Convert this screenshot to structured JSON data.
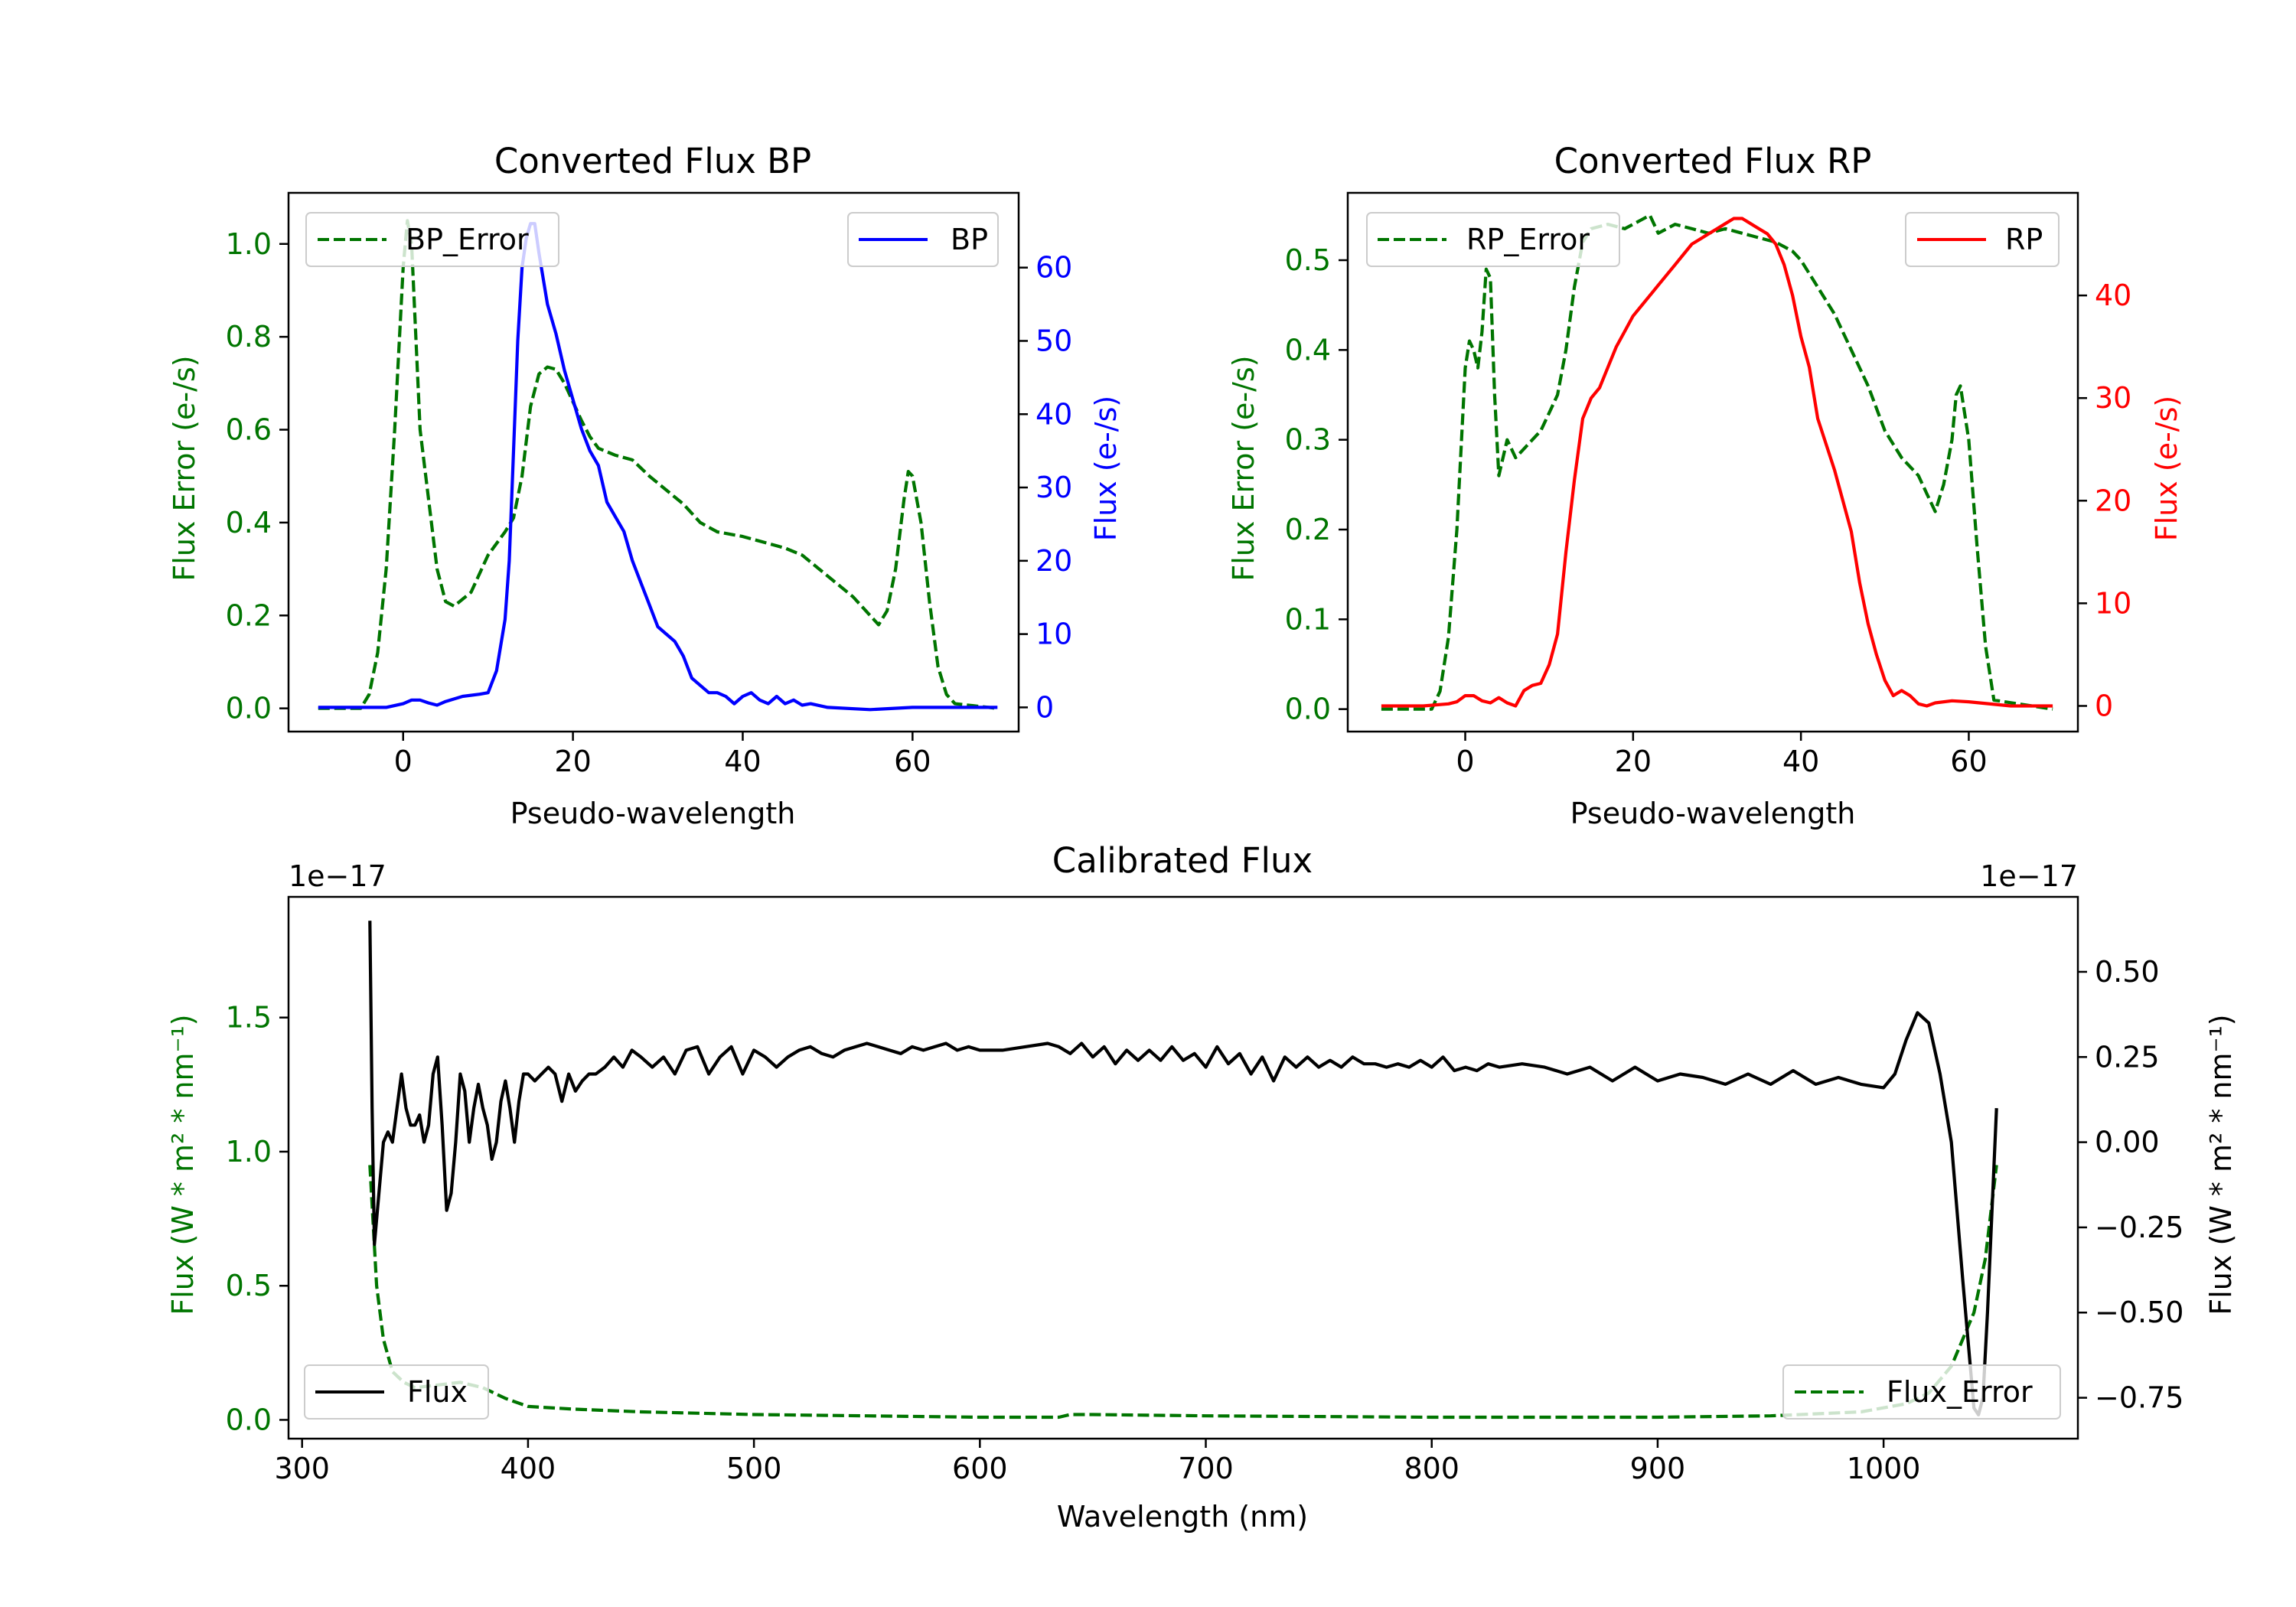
{
  "colors": {
    "error": "#007500",
    "bp": "#0000ff",
    "rp": "#ff0000",
    "flux": "#000000",
    "axis": "#000000",
    "background": "#ffffff"
  },
  "chart_data": [
    {
      "id": "bp",
      "type": "line",
      "title": "Converted Flux BP",
      "xlabel": "Pseudo-wavelength",
      "ylabel_left": "Flux Error (e-/s)",
      "ylabel_right": "Flux (e-/s)",
      "xlim": [
        -13.5,
        72.5
      ],
      "ylim_left": [
        -0.05,
        1.11
      ],
      "ylim_right": [
        -3.3,
        70.2
      ],
      "xticks": [
        0,
        20,
        40,
        60
      ],
      "yticks_left": [
        0.0,
        0.2,
        0.4,
        0.6,
        0.8,
        1.0
      ],
      "yticks_left_labels": [
        "0.0",
        "0.2",
        "0.4",
        "0.6",
        "0.8",
        "1.0"
      ],
      "yticks_right": [
        0,
        10,
        20,
        30,
        40,
        50,
        60
      ],
      "yticks_right_labels": [
        "0",
        "10",
        "20",
        "30",
        "40",
        "50",
        "60"
      ],
      "series": [
        {
          "name": "BP_Error",
          "axis": "left",
          "style": "dashed",
          "color": "#007500",
          "legend_location": "upper left",
          "x": [
            -10,
            -5,
            -4,
            -3,
            -2,
            -1,
            0,
            0.5,
            1,
            2,
            3,
            4,
            5,
            6,
            8,
            10,
            12,
            13,
            14,
            15,
            16,
            17,
            18,
            19,
            20,
            21,
            22,
            23,
            25,
            27,
            29,
            31,
            33,
            35,
            37,
            40,
            43,
            45,
            47,
            49,
            51,
            53,
            55,
            56,
            57,
            58,
            59,
            59.5,
            60,
            61,
            62,
            63,
            64,
            65,
            70
          ],
          "y": [
            0.0,
            0.0,
            0.03,
            0.12,
            0.3,
            0.6,
            0.95,
            1.05,
            1.0,
            0.6,
            0.45,
            0.3,
            0.23,
            0.22,
            0.25,
            0.33,
            0.38,
            0.41,
            0.5,
            0.65,
            0.72,
            0.735,
            0.73,
            0.7,
            0.66,
            0.62,
            0.585,
            0.56,
            0.545,
            0.535,
            0.5,
            0.47,
            0.44,
            0.4,
            0.38,
            0.37,
            0.355,
            0.345,
            0.33,
            0.3,
            0.27,
            0.24,
            0.2,
            0.18,
            0.21,
            0.3,
            0.45,
            0.51,
            0.5,
            0.4,
            0.23,
            0.09,
            0.03,
            0.01,
            0.0
          ]
        },
        {
          "name": "BP",
          "axis": "right",
          "style": "solid",
          "color": "#0000ff",
          "legend_location": "upper right",
          "x": [
            -10,
            -5,
            -2,
            0,
            1,
            2,
            3,
            4,
            5,
            7,
            9,
            10,
            11,
            12,
            12.5,
            13,
            13.5,
            14,
            14.5,
            15,
            15.5,
            16,
            17,
            18,
            19,
            20,
            21,
            22,
            23,
            24,
            25,
            26,
            27,
            28,
            29,
            30,
            31,
            32,
            33,
            34,
            35,
            36,
            37,
            38,
            39,
            40,
            41,
            42,
            43,
            44,
            45,
            46,
            47,
            48,
            50,
            55,
            60,
            65,
            70
          ],
          "y": [
            0,
            0,
            0,
            0.5,
            1,
            1,
            0.6,
            0.3,
            0.8,
            1.5,
            1.8,
            2,
            5,
            12,
            20,
            35,
            50,
            60,
            64,
            66,
            66,
            62,
            55,
            51,
            46,
            42,
            38,
            35,
            33,
            28,
            26,
            24,
            20,
            17,
            14,
            11,
            10,
            9,
            7,
            4,
            3,
            2,
            2,
            1.5,
            0.5,
            1.5,
            2,
            1,
            0.5,
            1.5,
            0.5,
            1,
            0.3,
            0.5,
            0,
            -0.3,
            0,
            0,
            0
          ]
        }
      ]
    },
    {
      "id": "rp",
      "type": "line",
      "title": "Converted Flux RP",
      "xlabel": "Pseudo-wavelength",
      "ylabel_left": "Flux Error (e-/s)",
      "ylabel_right": "Flux (e-/s)",
      "xlim": [
        -14,
        73
      ],
      "ylim_left": [
        -0.025,
        0.575
      ],
      "ylim_right": [
        -2.5,
        50
      ],
      "xticks": [
        0,
        20,
        40,
        60
      ],
      "yticks_left": [
        0.0,
        0.1,
        0.2,
        0.3,
        0.4,
        0.5
      ],
      "yticks_left_labels": [
        "0.0",
        "0.1",
        "0.2",
        "0.3",
        "0.4",
        "0.5"
      ],
      "yticks_right": [
        0,
        10,
        20,
        30,
        40
      ],
      "yticks_right_labels": [
        "0",
        "10",
        "20",
        "30",
        "40"
      ],
      "series": [
        {
          "name": "RP_Error",
          "axis": "left",
          "style": "dashed",
          "color": "#007500",
          "legend_location": "upper left",
          "x": [
            -10,
            -5,
            -4,
            -3,
            -2,
            -1,
            0,
            0.5,
            1,
            1.5,
            2,
            2.5,
            3,
            3.5,
            4,
            5,
            6,
            7,
            8,
            9,
            10,
            11,
            12,
            13,
            14,
            15,
            17,
            19,
            21,
            22,
            23,
            25,
            27,
            29,
            31,
            33,
            35,
            37,
            39,
            40,
            42,
            44,
            46,
            48,
            50,
            52,
            54,
            55,
            56,
            57,
            58,
            58.5,
            59,
            60,
            61,
            62,
            63,
            70
          ],
          "y": [
            0.0,
            0.0,
            0.0,
            0.02,
            0.08,
            0.2,
            0.38,
            0.41,
            0.4,
            0.38,
            0.42,
            0.49,
            0.48,
            0.35,
            0.26,
            0.3,
            0.28,
            0.29,
            0.3,
            0.31,
            0.33,
            0.35,
            0.4,
            0.47,
            0.52,
            0.535,
            0.54,
            0.535,
            0.545,
            0.55,
            0.53,
            0.54,
            0.535,
            0.53,
            0.535,
            0.53,
            0.525,
            0.52,
            0.51,
            0.5,
            0.47,
            0.44,
            0.4,
            0.36,
            0.31,
            0.28,
            0.26,
            0.24,
            0.22,
            0.25,
            0.3,
            0.35,
            0.36,
            0.3,
            0.18,
            0.07,
            0.01,
            0.0
          ]
        },
        {
          "name": "RP",
          "axis": "right",
          "style": "solid",
          "color": "#ff0000",
          "legend_location": "upper right",
          "x": [
            -10,
            -5,
            -2,
            -1,
            0,
            1,
            2,
            3,
            4,
            5,
            6,
            7,
            8,
            9,
            10,
            11,
            12,
            13,
            14,
            15,
            16,
            17,
            18,
            19,
            20,
            21,
            22,
            23,
            24,
            25,
            26,
            27,
            28,
            29,
            30,
            31,
            32,
            33,
            34,
            35,
            36,
            37,
            38,
            39,
            40,
            41,
            42,
            44,
            46,
            47,
            48,
            49,
            50,
            51,
            52,
            53,
            54,
            55,
            56,
            58,
            60,
            65,
            70
          ],
          "y": [
            0,
            0,
            0.2,
            0.4,
            1,
            1,
            0.5,
            0.3,
            0.8,
            0.3,
            0,
            1.5,
            2,
            2.2,
            4,
            7,
            15,
            22,
            28,
            30,
            31,
            33,
            35,
            36.5,
            38,
            39,
            40,
            41,
            42,
            43,
            44,
            45,
            45.5,
            46,
            46.5,
            47,
            47.5,
            47.5,
            47,
            46.5,
            46,
            45,
            43,
            40,
            36,
            33,
            28,
            23,
            17,
            12,
            8,
            5,
            2.5,
            1,
            1.5,
            1,
            0.2,
            0,
            0.3,
            0.5,
            0.4,
            0,
            0
          ]
        }
      ]
    },
    {
      "id": "calibrated",
      "type": "line",
      "title": "Calibrated Flux",
      "xlabel": "Wavelength (nm)",
      "ylabel_left": "Flux (W * m² * nm⁻¹)",
      "ylabel_right": "Flux (W * m² * nm⁻¹)",
      "offset_left": "1e−17",
      "offset_right": "1e−17",
      "xlim": [
        294,
        1086
      ],
      "ylim_left": [
        -0.07,
        1.95
      ],
      "ylim_right": [
        -0.87,
        0.72
      ],
      "xticks": [
        300,
        400,
        500,
        600,
        700,
        800,
        900,
        1000
      ],
      "yticks_left": [
        0.0,
        0.5,
        1.0,
        1.5
      ],
      "yticks_left_labels": [
        "0.0",
        "0.5",
        "1.0",
        "1.5"
      ],
      "yticks_right": [
        -0.75,
        -0.5,
        -0.25,
        0.0,
        0.25,
        0.5
      ],
      "yticks_right_labels": [
        "−0.75",
        "−0.50",
        "−0.25",
        "0.00",
        "0.25",
        "0.50"
      ],
      "series": [
        {
          "name": "Flux_Error",
          "axis": "left",
          "style": "dashed",
          "color": "#007500",
          "legend_location": "lower right",
          "x": [
            330,
            333,
            336,
            340,
            345,
            350,
            360,
            370,
            380,
            390,
            400,
            420,
            450,
            500,
            550,
            600,
            635,
            640,
            650,
            700,
            800,
            900,
            950,
            990,
            1010,
            1020,
            1030,
            1040,
            1045,
            1050
          ],
          "y": [
            0.95,
            0.5,
            0.3,
            0.18,
            0.14,
            0.12,
            0.13,
            0.14,
            0.12,
            0.08,
            0.05,
            0.04,
            0.03,
            0.02,
            0.015,
            0.01,
            0.01,
            0.02,
            0.02,
            0.015,
            0.01,
            0.01,
            0.015,
            0.03,
            0.06,
            0.1,
            0.2,
            0.4,
            0.6,
            0.95
          ]
        },
        {
          "name": "Flux",
          "axis": "right",
          "style": "solid",
          "color": "#000000",
          "legend_location": "lower left",
          "x": [
            330,
            331,
            332,
            334,
            336,
            338,
            340,
            342,
            344,
            346,
            348,
            350,
            352,
            354,
            356,
            358,
            360,
            362,
            364,
            366,
            368,
            370,
            372,
            374,
            376,
            378,
            380,
            382,
            384,
            386,
            388,
            390,
            392,
            394,
            396,
            398,
            400,
            403,
            406,
            409,
            412,
            415,
            418,
            421,
            424,
            427,
            430,
            434,
            438,
            442,
            446,
            450,
            455,
            460,
            465,
            470,
            475,
            480,
            485,
            490,
            495,
            500,
            505,
            510,
            515,
            520,
            525,
            530,
            535,
            540,
            545,
            550,
            555,
            560,
            565,
            570,
            575,
            580,
            585,
            590,
            595,
            600,
            610,
            620,
            630,
            635,
            640,
            645,
            650,
            655,
            660,
            665,
            670,
            675,
            680,
            685,
            690,
            695,
            700,
            705,
            710,
            715,
            720,
            725,
            730,
            735,
            740,
            745,
            750,
            755,
            760,
            765,
            770,
            775,
            780,
            785,
            790,
            795,
            800,
            805,
            810,
            815,
            820,
            825,
            830,
            840,
            850,
            860,
            870,
            880,
            890,
            900,
            910,
            920,
            930,
            940,
            950,
            960,
            970,
            980,
            990,
            1000,
            1005,
            1010,
            1015,
            1020,
            1025,
            1030,
            1035,
            1040,
            1042,
            1044,
            1046,
            1048,
            1050
          ],
          "y": [
            0.65,
            0.1,
            -0.3,
            -0.15,
            0.0,
            0.03,
            0.0,
            0.1,
            0.2,
            0.1,
            0.05,
            0.05,
            0.08,
            0.0,
            0.05,
            0.2,
            0.25,
            0.05,
            -0.2,
            -0.15,
            0.0,
            0.2,
            0.15,
            0.0,
            0.1,
            0.17,
            0.1,
            0.05,
            -0.05,
            0.0,
            0.12,
            0.18,
            0.1,
            0.0,
            0.12,
            0.2,
            0.2,
            0.18,
            0.2,
            0.22,
            0.2,
            0.12,
            0.2,
            0.15,
            0.18,
            0.2,
            0.2,
            0.22,
            0.25,
            0.22,
            0.27,
            0.25,
            0.22,
            0.25,
            0.2,
            0.27,
            0.28,
            0.2,
            0.25,
            0.28,
            0.2,
            0.27,
            0.25,
            0.22,
            0.25,
            0.27,
            0.28,
            0.26,
            0.25,
            0.27,
            0.28,
            0.29,
            0.28,
            0.27,
            0.26,
            0.28,
            0.27,
            0.28,
            0.29,
            0.27,
            0.28,
            0.27,
            0.27,
            0.28,
            0.29,
            0.28,
            0.26,
            0.29,
            0.25,
            0.28,
            0.23,
            0.27,
            0.24,
            0.27,
            0.24,
            0.28,
            0.24,
            0.26,
            0.22,
            0.28,
            0.23,
            0.26,
            0.2,
            0.25,
            0.18,
            0.25,
            0.22,
            0.25,
            0.22,
            0.24,
            0.22,
            0.25,
            0.23,
            0.23,
            0.22,
            0.23,
            0.22,
            0.24,
            0.22,
            0.25,
            0.21,
            0.22,
            0.21,
            0.23,
            0.22,
            0.23,
            0.22,
            0.2,
            0.22,
            0.18,
            0.22,
            0.18,
            0.2,
            0.19,
            0.17,
            0.2,
            0.17,
            0.21,
            0.17,
            0.19,
            0.17,
            0.16,
            0.2,
            0.3,
            0.38,
            0.35,
            0.2,
            0.0,
            -0.4,
            -0.78,
            -0.8,
            -0.75,
            -0.5,
            -0.2,
            0.1
          ]
        }
      ]
    }
  ]
}
